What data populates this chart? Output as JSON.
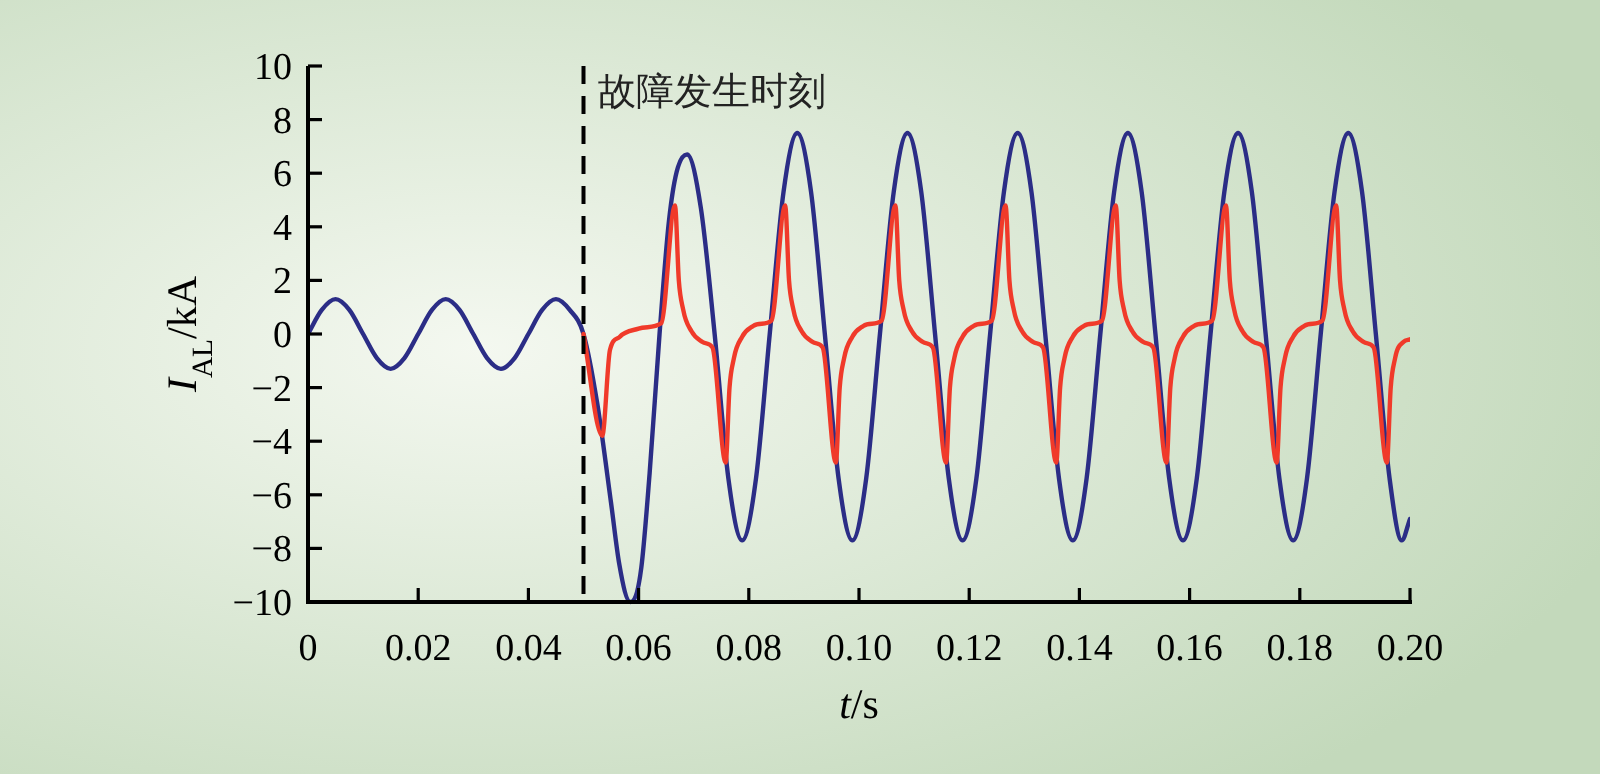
{
  "chart_data": {
    "type": "line",
    "xlabel": "t/s",
    "ylabel": "I$_{AL}$/kA",
    "xlim": [
      0,
      0.2
    ],
    "ylim": [
      -10,
      10
    ],
    "xticks": [
      0,
      0.02,
      0.04,
      0.06,
      0.08,
      {
        "value": 0.1,
        "label": "0.10"
      },
      0.12,
      0.14,
      0.16,
      0.18,
      {
        "value": 0.2,
        "label": "0.20"
      }
    ],
    "yticks": [
      -10,
      -8,
      -6,
      -4,
      -2,
      0,
      2,
      4,
      6,
      8,
      10
    ],
    "grid": false,
    "line_style": "solid",
    "marker": "none",
    "ref_lines": [
      {
        "axis": "x",
        "value": 0.05,
        "label": "故障发生时刻",
        "line_style": "dashed",
        "color": "#000000"
      }
    ],
    "series": [
      {
        "color": "#2b2d86",
        "x": [
          0,
          0.0025,
          0.005,
          0.0075,
          0.01,
          0.0125,
          0.015,
          0.0175,
          0.02,
          0.0225,
          0.025,
          0.0275,
          0.03,
          0.0325,
          0.035,
          0.0375,
          0.04,
          0.0425,
          0.045,
          0.0475,
          0.05,
          0.0525,
          0.055,
          0.0565,
          0.0585,
          0.0605,
          0.062,
          0.0638,
          0.0655,
          0.0688,
          0.0713,
          0.0738,
          0.0763,
          0.0788,
          0.0813,
          0.0838,
          0.0863,
          0.0888,
          0.0913,
          0.0938,
          0.0963,
          0.0988,
          0.1013,
          0.1038,
          0.1063,
          0.1088,
          0.1113,
          0.1138,
          0.1163,
          0.1188,
          0.1213,
          0.1238,
          0.1263,
          0.1288,
          0.1313,
          0.1338,
          0.1363,
          0.1388,
          0.1413,
          0.1438,
          0.1463,
          0.1488,
          0.1513,
          0.1538,
          0.1563,
          0.1588,
          0.1613,
          0.1638,
          0.1663,
          0.1688,
          0.1713,
          0.1738,
          0.1763,
          0.1788,
          0.1813,
          0.1838,
          0.1863,
          0.1888,
          0.1913,
          0.1938,
          0.1963,
          0.1985,
          0.2
        ],
        "values": [
          0,
          0.9,
          1.3,
          0.9,
          0,
          -0.9,
          -1.3,
          -0.9,
          0,
          0.9,
          1.3,
          0.9,
          0,
          -0.9,
          -1.3,
          -0.9,
          0,
          0.9,
          1.3,
          0.9,
          0,
          -2.6,
          -6.3,
          -8.6,
          -10,
          -8.7,
          -5.2,
          0,
          4.2,
          6.7,
          4.7,
          0,
          -5.4,
          -7.7,
          -5.4,
          0,
          5.3,
          7.5,
          5.3,
          0,
          -5.4,
          -7.7,
          -5.4,
          0,
          5.3,
          7.5,
          5.3,
          0,
          -5.4,
          -7.7,
          -5.4,
          0,
          5.3,
          7.5,
          5.3,
          0,
          -5.4,
          -7.7,
          -5.4,
          0,
          5.3,
          7.5,
          5.3,
          0,
          -5.4,
          -7.7,
          -5.4,
          0,
          5.3,
          7.5,
          5.3,
          0,
          -5.4,
          -7.7,
          -5.4,
          0,
          5.3,
          7.5,
          5.3,
          0,
          -5.4,
          -7.7,
          -6.9
        ]
      },
      {
        "color": "#f03a2a",
        "x": [
          0.05,
          0.0534,
          0.0548,
          0.0566,
          0.06,
          0.0641,
          0.0666,
          0.0673,
          0.0681,
          0.0696,
          0.0716,
          0.0734,
          0.0758,
          0.0765,
          0.0773,
          0.0788,
          0.0808,
          0.0841,
          0.0866,
          0.0873,
          0.0881,
          0.0896,
          0.0916,
          0.0934,
          0.0958,
          0.0965,
          0.0973,
          0.0988,
          0.1008,
          0.1041,
          0.1066,
          0.1073,
          0.1081,
          0.1096,
          0.1116,
          0.1134,
          0.1158,
          0.1165,
          0.1173,
          0.1188,
          0.1208,
          0.1241,
          0.1266,
          0.1273,
          0.1281,
          0.1296,
          0.1316,
          0.1334,
          0.1358,
          0.1365,
          0.1373,
          0.1388,
          0.1408,
          0.1441,
          0.1466,
          0.1473,
          0.1481,
          0.1496,
          0.1516,
          0.1534,
          0.1558,
          0.1565,
          0.1573,
          0.1588,
          0.1608,
          0.1641,
          0.1666,
          0.1673,
          0.1681,
          0.1696,
          0.1716,
          0.1734,
          0.1758,
          0.1765,
          0.1773,
          0.1788,
          0.1808,
          0.1841,
          0.1866,
          0.1873,
          0.1881,
          0.1896,
          0.1916,
          0.1934,
          0.1958,
          0.1965,
          0.1973,
          0.1988,
          0.2
        ],
        "values": [
          0,
          -3.8,
          -0.6,
          -0.1,
          0.2,
          0.4,
          4.8,
          2.0,
          0.9,
          0.1,
          -0.3,
          -0.5,
          -4.8,
          -2.0,
          -0.9,
          -0.1,
          0.3,
          0.5,
          4.8,
          2.0,
          0.9,
          0.1,
          -0.3,
          -0.5,
          -4.8,
          -2.0,
          -0.9,
          -0.1,
          0.3,
          0.5,
          4.8,
          2.0,
          0.9,
          0.1,
          -0.3,
          -0.5,
          -4.8,
          -2.0,
          -0.9,
          -0.1,
          0.3,
          0.5,
          4.8,
          2.0,
          0.9,
          0.1,
          -0.3,
          -0.5,
          -4.8,
          -2.0,
          -0.9,
          -0.1,
          0.3,
          0.5,
          4.8,
          2.0,
          0.9,
          0.1,
          -0.3,
          -0.5,
          -4.8,
          -2.0,
          -0.9,
          -0.1,
          0.3,
          0.5,
          4.8,
          2.0,
          0.9,
          0.1,
          -0.3,
          -0.5,
          -4.8,
          -2.0,
          -0.9,
          -0.1,
          0.3,
          0.5,
          4.8,
          2.0,
          0.9,
          0.1,
          -0.3,
          -0.5,
          -4.8,
          -2.0,
          -0.9,
          -0.3,
          -0.2
        ]
      }
    ]
  }
}
